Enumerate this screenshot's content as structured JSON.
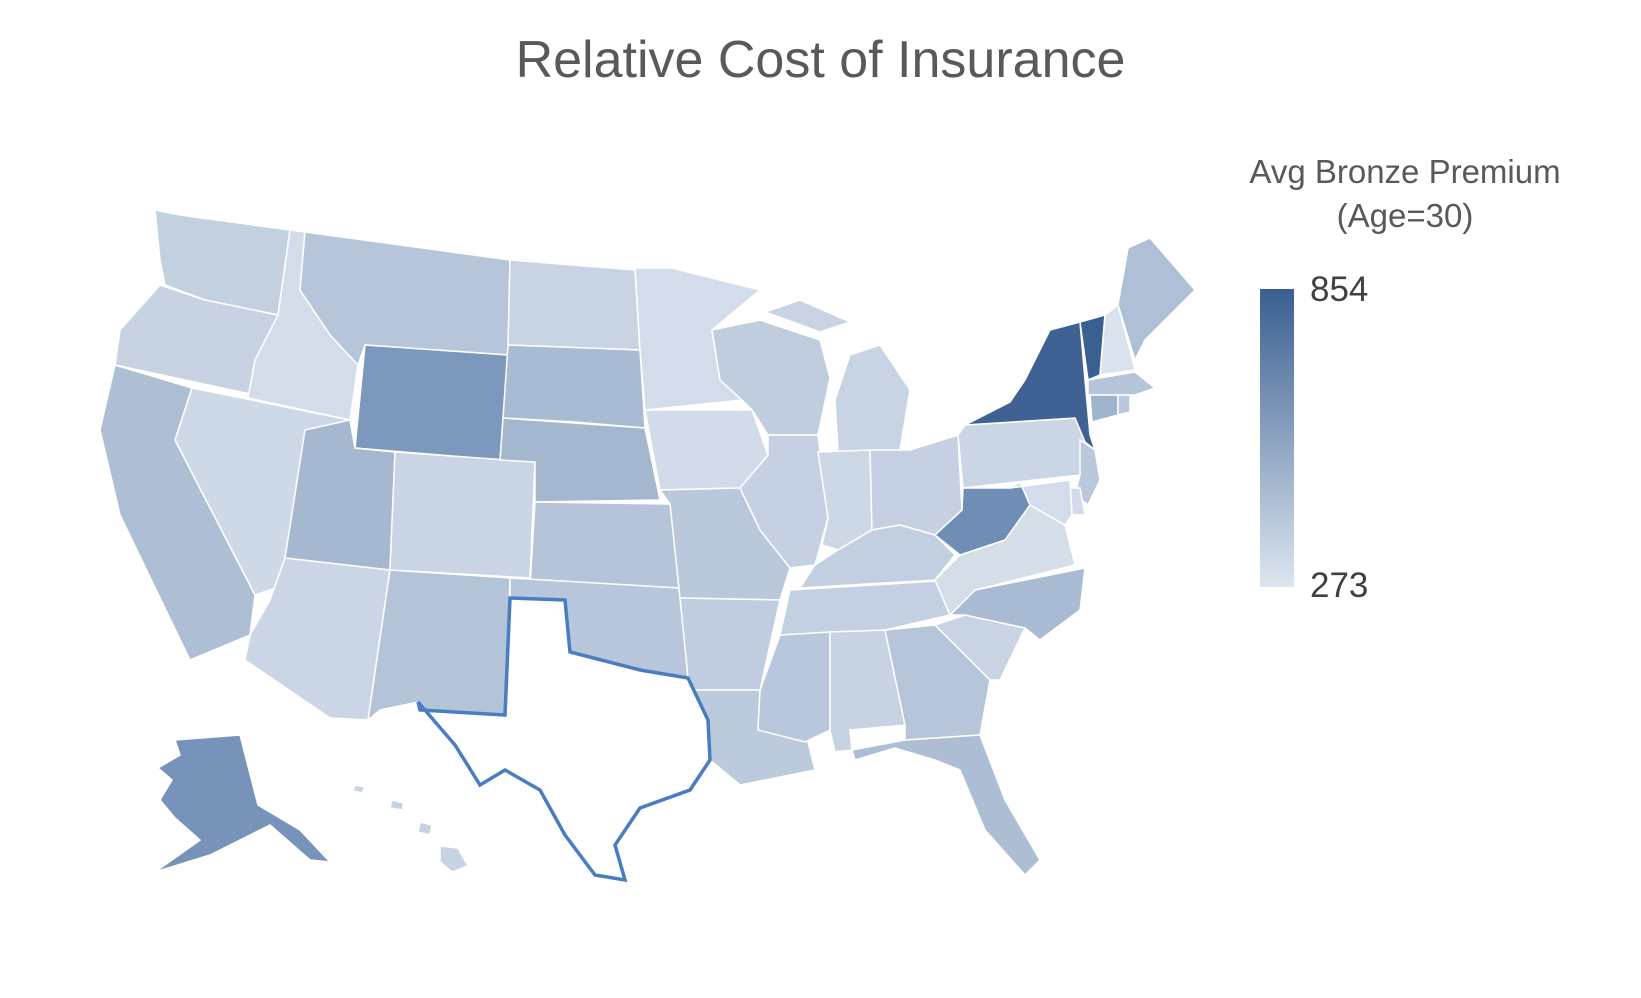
{
  "title": "Relative Cost of Insurance",
  "legend": {
    "title_line1": "Avg Bronze Premium",
    "title_line2": "(Age=30)",
    "max": "854",
    "min": "273",
    "color_max": "#3a5f91",
    "color_min": "#dde6f0"
  },
  "highlighted_state": "TX",
  "highlight_color": "#4a7dc0",
  "states": {
    "WA": "#c3d0e0",
    "OR": "#c7d3e3",
    "CA": "#aebed5",
    "ID": "#d3dde9",
    "NV": "#ced9e7",
    "MT": "#b6c5da",
    "WY": "#7c98bc",
    "UT": "#a6b8d0",
    "AZ": "#cad6e5",
    "CO": "#c9d5e5",
    "NM": "#b3c3d8",
    "ND": "#c8d4e4",
    "SD": "#a9bbd2",
    "NE": "#a5b7cf",
    "KS": "#b5c4d9",
    "OK": "#b7c6da",
    "TX": "#bccbde",
    "MN": "#d2dcea",
    "IA": "#d1dbe9",
    "MO": "#b9c8db",
    "AR": "#c0cde0",
    "LA": "#bccadd",
    "WI": "#bfcddf",
    "IL": "#c5d1e2",
    "MI": "#c8d4e4",
    "IN": "#cdd8e7",
    "OH": "#c5d1e2",
    "KY": "#c2cfe1",
    "TN": "#c3d0e1",
    "MS": "#b8c7db",
    "AL": "#c7d3e3",
    "GA": "#b6c5da",
    "FL": "#adbed4",
    "SC": "#c8d4e4",
    "NC": "#a9bbd2",
    "VA": "#d4dee9",
    "WV": "#6f8db5",
    "PA": "#cad6e5",
    "NY": "#3f6194",
    "VT": "#3a5f91",
    "NH": "#d9e2ed",
    "ME": "#afc0d6",
    "MA": "#b5c4d9",
    "CT": "#a0b3cd",
    "RI": "#b9c7db",
    "NJ": "#bac8dc",
    "DE": "#d1dbe9",
    "MD": "#d2dcea",
    "AK": "#7893ba",
    "HI": "#c7d3e3"
  }
}
